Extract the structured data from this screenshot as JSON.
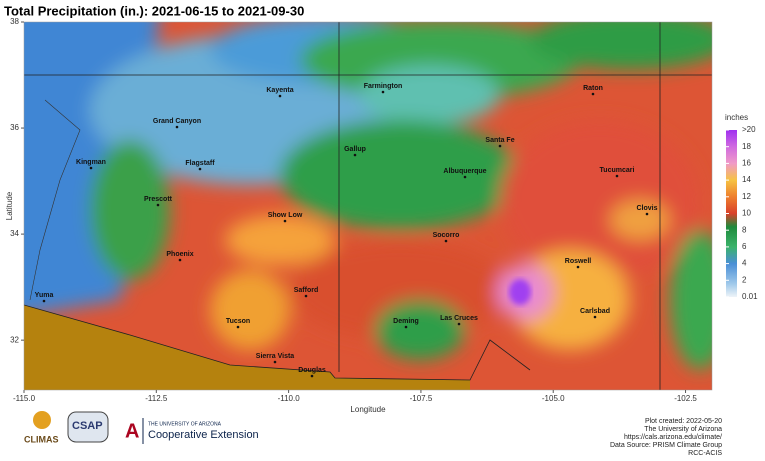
{
  "title": "Total Precipitation (in.): 2021-06-15 to 2021-09-30",
  "map": {
    "x_label": "Longitude",
    "y_label": "Latitude",
    "xlim": [
      -115.0,
      -102.0
    ],
    "ylim": [
      31.06,
      38
    ],
    "xticks": [
      {
        "value": -115,
        "label": "-115.0"
      },
      {
        "value": -112.5,
        "label": "-112.5"
      },
      {
        "value": -110,
        "label": "-110.0"
      },
      {
        "value": -107.5,
        "label": "-107.5"
      },
      {
        "value": -105,
        "label": "-105.0"
      },
      {
        "value": -102.5,
        "label": "-102.5"
      }
    ],
    "yticks": [
      32,
      34,
      36,
      38
    ],
    "cities": [
      "Kayenta",
      "Farmington",
      "Grand Canyon",
      "Raton",
      "Santa Fe",
      "Kingman",
      "Gallup",
      "Flagstaff",
      "Albuquerque",
      "Tucumcari",
      "Prescott",
      "Clovis",
      "Show Low",
      "Socorro",
      "Phoenix",
      "Roswell",
      "Safford",
      "Yuma",
      "Carlsbad",
      "Deming",
      "Las Cruces",
      "Tucson",
      "Sierra Vista",
      "Douglas"
    ]
  },
  "legend": {
    "title": "inches",
    "ticks": [
      {
        "value": 20,
        "label": ">20"
      },
      18,
      16,
      14,
      12,
      10,
      8,
      6,
      4,
      2,
      0.01
    ]
  },
  "footer": {
    "logos": [
      "CLIMAS",
      "CSAP",
      "THE UNIVERSITY OF ARIZONA",
      "Cooperative Extension"
    ],
    "credits": [
      "Plot created: 2022-05-20",
      "The University of Arizona",
      "https://cals.arizona.edu/climate/",
      "Data Source: PRISM Climate Group",
      "RCC-ACIS"
    ]
  }
}
